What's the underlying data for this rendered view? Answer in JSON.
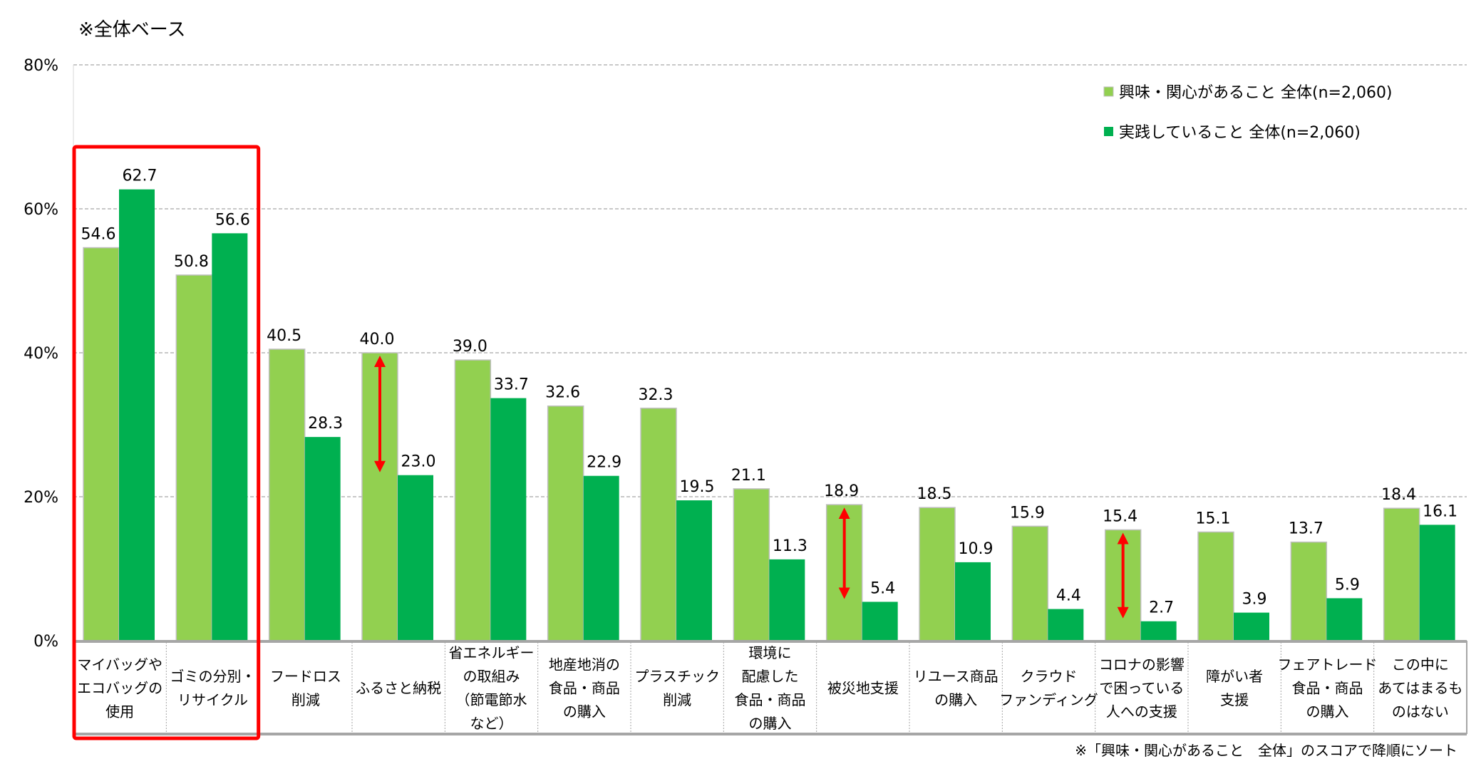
{
  "chart_data": {
    "type": "bar",
    "title": "※全体ベース",
    "footnote": "※「興味・関心があること　全体」のスコアで降順にソート",
    "ylim": [
      0,
      80
    ],
    "yticks": [
      0,
      20,
      40,
      60,
      80
    ],
    "ytick_labels": [
      "0%",
      "20%",
      "40%",
      "60%",
      "80%"
    ],
    "grid": true,
    "legend_placement": "top-right",
    "categories": [
      [
        "マイバッグや",
        "エコバッグの",
        "使用"
      ],
      [
        "ゴミの分別・",
        "リサイクル"
      ],
      [
        "フードロス",
        "削減"
      ],
      [
        "ふるさと納税"
      ],
      [
        "省エネルギー",
        "の取組み",
        "（節電節水",
        "など）"
      ],
      [
        "地産地消の",
        "食品・商品",
        "の購入"
      ],
      [
        "プラスチック",
        "削減"
      ],
      [
        "環境に",
        "配慮した",
        "食品・商品",
        "の購入"
      ],
      [
        "被災地支援"
      ],
      [
        "リユース商品",
        "の購入"
      ],
      [
        "クラウド",
        "ファンディング"
      ],
      [
        "コロナの影響",
        "で困っている",
        "人への支援"
      ],
      [
        "障がい者",
        "支援"
      ],
      [
        "フェアトレード",
        "食品・商品",
        "の購入"
      ],
      [
        "この中に",
        "あてはまるも",
        "のはない"
      ]
    ],
    "series": [
      {
        "name": "興味・関心があること 全体(n=2,060)",
        "color": "#92D050",
        "values": [
          54.6,
          50.8,
          40.5,
          40.0,
          39.0,
          32.6,
          32.3,
          21.1,
          18.9,
          18.5,
          15.9,
          15.4,
          15.1,
          13.7,
          18.4
        ]
      },
      {
        "name": "実践していること 全体(n=2,060)",
        "color": "#00B050",
        "values": [
          62.7,
          56.6,
          28.3,
          23.0,
          33.7,
          22.9,
          19.5,
          11.3,
          5.4,
          10.9,
          4.4,
          2.7,
          3.9,
          5.9,
          16.1
        ]
      }
    ],
    "highlight_box_categories": [
      0,
      1
    ],
    "highlight_color": "#FF0000",
    "gap_arrows_categories": [
      3,
      8,
      11
    ]
  }
}
